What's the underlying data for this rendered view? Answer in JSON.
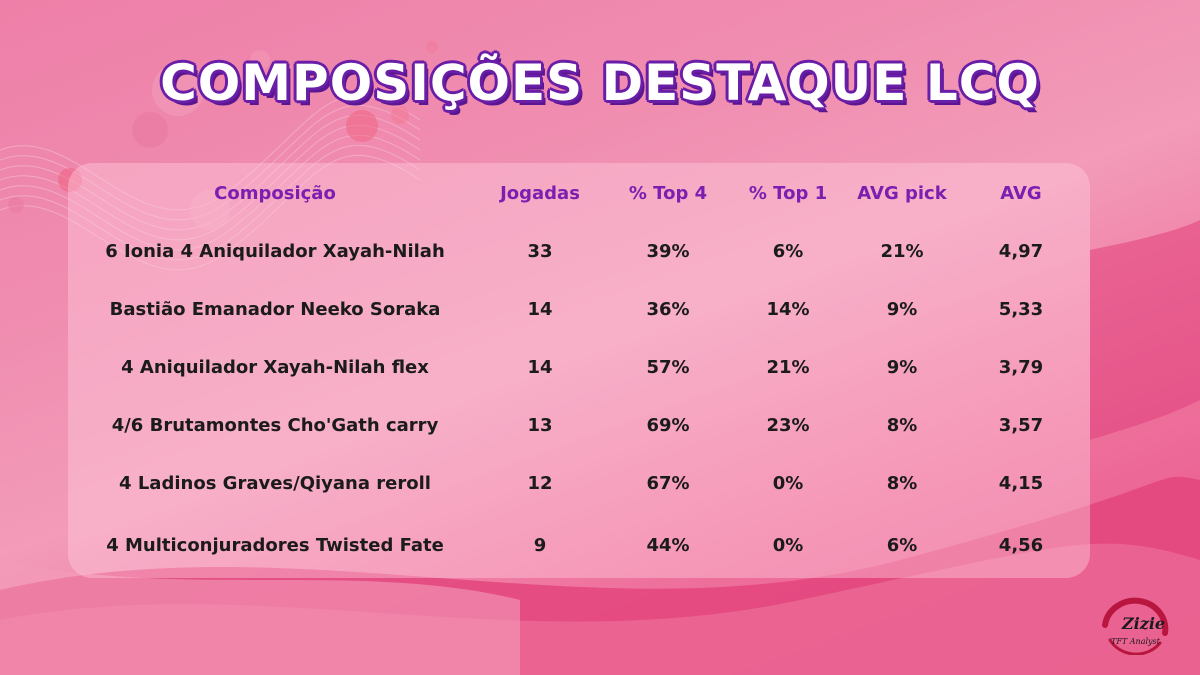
{
  "title": "COMPOSIÇÕES DESTAQUE LCQ",
  "table": {
    "headers": [
      "Composição",
      "Jogadas",
      "% Top 4",
      "% Top 1",
      "AVG pick",
      "AVG"
    ],
    "rows": [
      [
        "6 Ionia 4 Aniquilador Xayah-Nilah",
        "33",
        "39%",
        "6%",
        "21%",
        "4,97"
      ],
      [
        "Bastião Emanador Neeko Soraka",
        "14",
        "36%",
        "14%",
        "9%",
        "5,33"
      ],
      [
        "4 Aniquilador Xayah-Nilah flex",
        "14",
        "57%",
        "21%",
        "9%",
        "3,79"
      ],
      [
        "4/6 Brutamontes Cho'Gath carry",
        "13",
        "69%",
        "23%",
        "8%",
        "3,57"
      ],
      [
        "4 Ladinos Graves/Qiyana reroll",
        "12",
        "67%",
        "0%",
        "8%",
        "4,15"
      ],
      [
        "4 Multiconjuradores Twisted Fate",
        "9",
        "44%",
        "0%",
        "6%",
        "4,56"
      ]
    ]
  },
  "brand": {
    "name": "Zizie",
    "subtitle": "TFT Analyst"
  },
  "colors": {
    "header_text": "#7a1fb0",
    "title_outline": "#6a1ea8",
    "value_text": "#1b1b1b"
  }
}
